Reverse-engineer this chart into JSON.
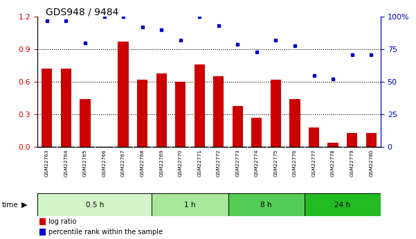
{
  "title": "GDS948 / 9484",
  "categories": [
    "GSM22763",
    "GSM22764",
    "GSM22765",
    "GSM22766",
    "GSM22767",
    "GSM22768",
    "GSM22769",
    "GSM22770",
    "GSM22771",
    "GSM22772",
    "GSM22773",
    "GSM22774",
    "GSM22775",
    "GSM22776",
    "GSM22777",
    "GSM22778",
    "GSM22779",
    "GSM22780"
  ],
  "log_ratio": [
    0.72,
    0.72,
    0.44,
    0.0,
    0.97,
    0.62,
    0.68,
    0.6,
    0.76,
    0.65,
    0.38,
    0.27,
    0.62,
    0.44,
    0.18,
    0.04,
    0.13,
    0.13
  ],
  "percentile_rank": [
    97,
    97,
    80,
    100,
    100,
    92,
    90,
    82,
    100,
    93,
    79,
    73,
    82,
    78,
    55,
    52,
    71,
    71
  ],
  "bar_color": "#cc0000",
  "dot_color": "#0000cc",
  "left_ylim": [
    0,
    1.2
  ],
  "left_yticks": [
    0,
    0.3,
    0.6,
    0.9,
    1.2
  ],
  "right_yticks": [
    0,
    25,
    50,
    75,
    100
  ],
  "right_yticklabels": [
    "0",
    "25",
    "50",
    "75",
    "100%"
  ],
  "groups": [
    {
      "label": "0.5 h",
      "start": 0,
      "end": 6,
      "color": "#d4f5c9"
    },
    {
      "label": "1 h",
      "start": 6,
      "end": 10,
      "color": "#a8e89a"
    },
    {
      "label": "8 h",
      "start": 10,
      "end": 14,
      "color": "#55cc55"
    },
    {
      "label": "24 h",
      "start": 14,
      "end": 18,
      "color": "#22bb22"
    }
  ],
  "legend_logratio": "log ratio",
  "legend_percentile": "percentile rank within the sample",
  "title_fontsize": 10,
  "tick_fontsize": 7,
  "bar_color_left": "#cc0000",
  "tick_color_right": "#0000cc"
}
